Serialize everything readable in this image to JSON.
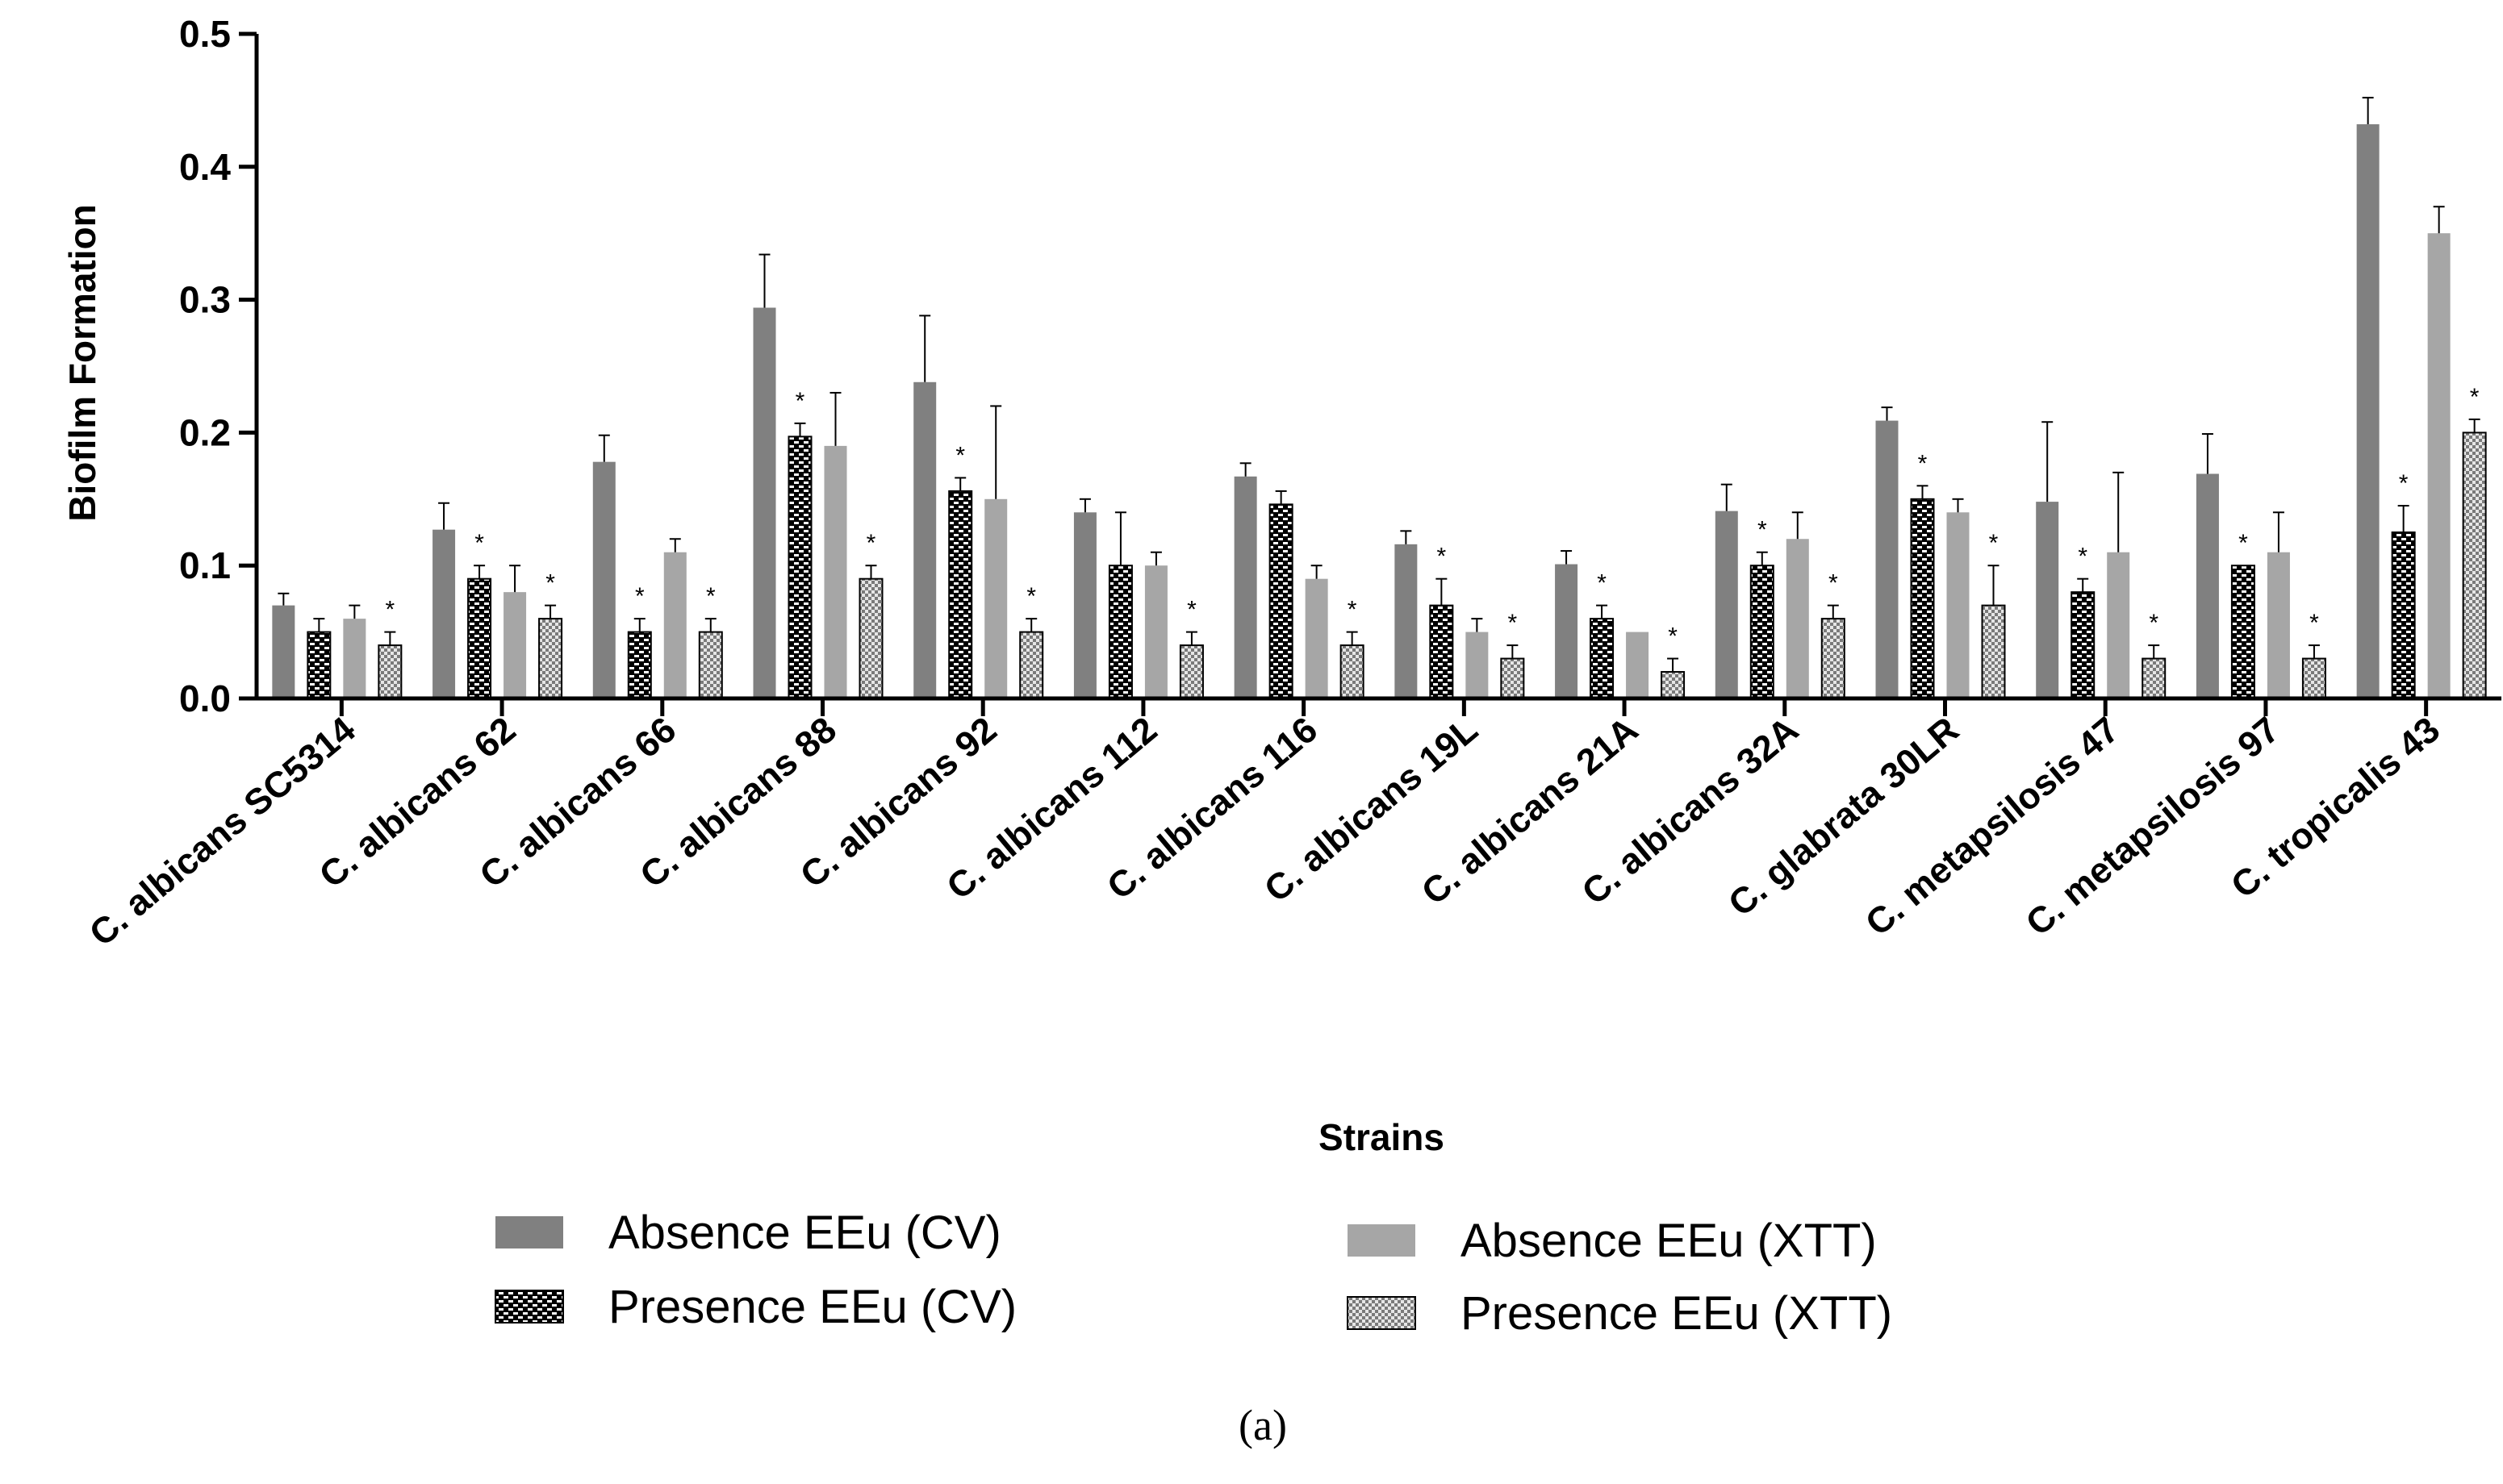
{
  "chart_data": {
    "type": "bar",
    "title": "",
    "xlabel": "Strains",
    "ylabel": "Biofilm Formation",
    "ylim": [
      0,
      0.5
    ],
    "yticks": [
      "0.0",
      "0.1",
      "0.2",
      "0.3",
      "0.4",
      "0.5"
    ],
    "grid": false,
    "legend_position": "bottom",
    "categories": [
      "C. albicans SC5314",
      "C. albicans 62",
      "C. albicans 66",
      "C. albicans 88",
      "C. albicans 92",
      "C. albicans 112",
      "C. albicans 116",
      "C. albicans 19L",
      "C. albicans 21A",
      "C. albicans 32A",
      "C. glabrata 30LR",
      "C. metapsilosis 47",
      "C. metapsilosis 97",
      "C. tropicalis 43"
    ],
    "series": [
      {
        "name": "Absence EEu (CV)",
        "color": "#808080",
        "pattern": "solid",
        "values": [
          0.07,
          0.127,
          0.178,
          0.294,
          0.238,
          0.14,
          0.167,
          0.116,
          0.101,
          0.141,
          0.209,
          0.148,
          0.169,
          0.432
        ],
        "errors": [
          0.009,
          0.02,
          0.02,
          0.04,
          0.05,
          0.01,
          0.01,
          0.01,
          0.01,
          0.02,
          0.01,
          0.06,
          0.03,
          0.02
        ],
        "significant": [
          false,
          false,
          false,
          false,
          false,
          false,
          false,
          false,
          false,
          false,
          false,
          false,
          false,
          false
        ]
      },
      {
        "name": "Presence EEu (CV)",
        "color": "#1a1a1a",
        "pattern": "brick",
        "values": [
          0.05,
          0.09,
          0.05,
          0.197,
          0.156,
          0.1,
          0.146,
          0.07,
          0.06,
          0.1,
          0.15,
          0.08,
          0.1,
          0.125
        ],
        "errors": [
          0.01,
          0.01,
          0.01,
          0.01,
          0.01,
          0.04,
          0.01,
          0.02,
          0.01,
          0.01,
          0.01,
          0.01,
          0.0,
          0.02
        ],
        "significant": [
          false,
          true,
          true,
          true,
          true,
          false,
          false,
          true,
          true,
          true,
          true,
          true,
          true,
          true
        ]
      },
      {
        "name": "Absence EEu (XTT)",
        "color": "#a6a6a6",
        "pattern": "solid",
        "values": [
          0.06,
          0.08,
          0.11,
          0.19,
          0.15,
          0.1,
          0.09,
          0.05,
          0.05,
          0.12,
          0.14,
          0.11,
          0.11,
          0.35
        ],
        "errors": [
          0.01,
          0.02,
          0.01,
          0.04,
          0.07,
          0.01,
          0.01,
          0.01,
          0.0,
          0.02,
          0.01,
          0.06,
          0.03,
          0.02
        ],
        "significant": [
          false,
          false,
          false,
          false,
          false,
          false,
          false,
          false,
          false,
          false,
          false,
          false,
          false,
          false
        ]
      },
      {
        "name": "Presence EEu (XTT)",
        "color": "#c8c8c8",
        "pattern": "checker",
        "values": [
          0.04,
          0.06,
          0.05,
          0.09,
          0.05,
          0.04,
          0.04,
          0.03,
          0.02,
          0.06,
          0.07,
          0.03,
          0.03,
          0.2
        ],
        "errors": [
          0.01,
          0.01,
          0.01,
          0.01,
          0.01,
          0.01,
          0.01,
          0.01,
          0.01,
          0.01,
          0.03,
          0.01,
          0.01,
          0.01
        ],
        "significant": [
          true,
          true,
          true,
          true,
          true,
          true,
          true,
          true,
          true,
          true,
          true,
          true,
          true,
          true
        ]
      }
    ],
    "significance_marker": "*",
    "caption": "(a)"
  }
}
